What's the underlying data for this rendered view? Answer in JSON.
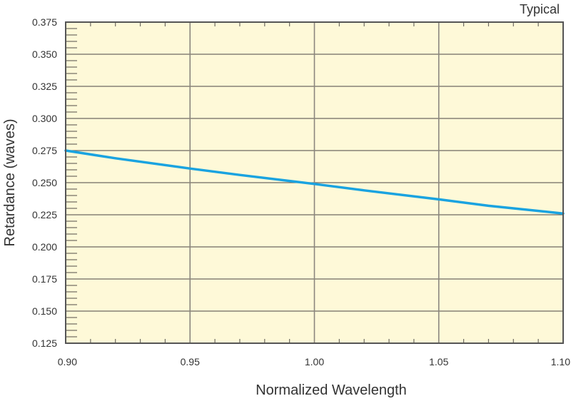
{
  "chart_data": {
    "type": "line",
    "title": "",
    "annotation": "Typical",
    "xlabel": "Normalized Wavelength",
    "ylabel": "Retardance (waves)",
    "xlim": [
      0.9,
      1.1
    ],
    "ylim": [
      0.125,
      0.375
    ],
    "x_ticks": [
      "0.90",
      "0.95",
      "1.00",
      "1.05",
      "1.10"
    ],
    "y_ticks": [
      "0.375",
      "0.350",
      "0.325",
      "0.300",
      "0.275",
      "0.250",
      "0.225",
      "0.200",
      "0.175",
      "0.150",
      "0.125"
    ],
    "grid": true,
    "legend": null,
    "series": [
      {
        "name": "Retardance",
        "color": "#1aa3e0",
        "x": [
          0.9,
          0.92,
          0.95,
          0.97,
          1.0,
          1.02,
          1.05,
          1.07,
          1.1
        ],
        "y": [
          0.275,
          0.269,
          0.261,
          0.256,
          0.249,
          0.244,
          0.237,
          0.232,
          0.226
        ]
      }
    ]
  },
  "colors": {
    "plot_background": "#fef9d8",
    "grid": "#6e6a62",
    "axis": "#555555",
    "line": "#1aa3e0"
  }
}
